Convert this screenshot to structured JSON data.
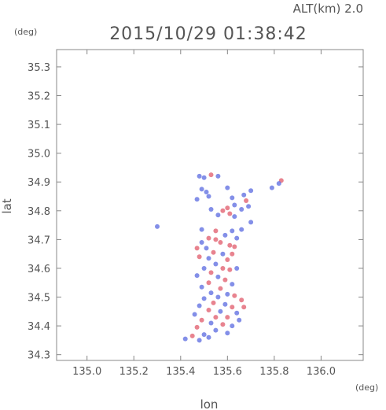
{
  "header": {
    "alt_label": "ALT(km) 2.0",
    "timestamp": "2015/10/29 01:38:42"
  },
  "chart_data": {
    "type": "scatter",
    "title": "2015/10/29 01:38:42",
    "subtitle": "ALT(km) 2.0",
    "xlabel": "lon",
    "ylabel": "lat",
    "x_unit": "(deg)",
    "y_unit": "(deg)",
    "xlim": [
      134.87,
      136.18
    ],
    "ylim": [
      34.28,
      35.36
    ],
    "x_ticks": [
      "135.0",
      "135.2",
      "135.4",
      "135.6",
      "135.8",
      "136.0"
    ],
    "x_tick_values": [
      135.0,
      135.2,
      135.4,
      135.6,
      135.8,
      136.0
    ],
    "y_ticks": [
      "34.3",
      "34.4",
      "34.5",
      "34.6",
      "34.7",
      "34.8",
      "34.9",
      "35.0",
      "35.1",
      "35.2",
      "35.3"
    ],
    "y_tick_values": [
      34.3,
      34.4,
      34.5,
      34.6,
      34.7,
      34.8,
      34.9,
      35.0,
      35.1,
      35.2,
      35.3
    ],
    "colors": {
      "positive": "#e05a6a",
      "negative": "#5a6ae0",
      "axis": "#888888"
    },
    "points": [
      {
        "lon": 135.53,
        "lat": 34.925,
        "s": "pos"
      },
      {
        "lon": 135.5,
        "lat": 34.915,
        "s": "neg"
      },
      {
        "lon": 135.48,
        "lat": 34.92,
        "s": "neg"
      },
      {
        "lon": 135.56,
        "lat": 34.92,
        "s": "neg"
      },
      {
        "lon": 135.83,
        "lat": 34.905,
        "s": "pos"
      },
      {
        "lon": 135.82,
        "lat": 34.895,
        "s": "neg"
      },
      {
        "lon": 135.79,
        "lat": 34.88,
        "s": "neg"
      },
      {
        "lon": 135.6,
        "lat": 34.88,
        "s": "neg"
      },
      {
        "lon": 135.49,
        "lat": 34.875,
        "s": "neg"
      },
      {
        "lon": 135.51,
        "lat": 34.865,
        "s": "neg"
      },
      {
        "lon": 135.7,
        "lat": 34.87,
        "s": "neg"
      },
      {
        "lon": 135.67,
        "lat": 34.855,
        "s": "neg"
      },
      {
        "lon": 135.52,
        "lat": 34.85,
        "s": "neg"
      },
      {
        "lon": 135.62,
        "lat": 34.845,
        "s": "neg"
      },
      {
        "lon": 135.68,
        "lat": 34.835,
        "s": "pos"
      },
      {
        "lon": 135.47,
        "lat": 34.84,
        "s": "neg"
      },
      {
        "lon": 135.63,
        "lat": 34.82,
        "s": "neg"
      },
      {
        "lon": 135.6,
        "lat": 34.81,
        "s": "pos"
      },
      {
        "lon": 135.53,
        "lat": 34.805,
        "s": "neg"
      },
      {
        "lon": 135.66,
        "lat": 34.805,
        "s": "neg"
      },
      {
        "lon": 135.69,
        "lat": 34.815,
        "s": "neg"
      },
      {
        "lon": 135.58,
        "lat": 34.8,
        "s": "pos"
      },
      {
        "lon": 135.61,
        "lat": 34.79,
        "s": "pos"
      },
      {
        "lon": 135.56,
        "lat": 34.785,
        "s": "neg"
      },
      {
        "lon": 135.63,
        "lat": 34.78,
        "s": "neg"
      },
      {
        "lon": 135.7,
        "lat": 34.76,
        "s": "neg"
      },
      {
        "lon": 135.3,
        "lat": 34.745,
        "s": "neg"
      },
      {
        "lon": 135.49,
        "lat": 34.735,
        "s": "neg"
      },
      {
        "lon": 135.55,
        "lat": 34.73,
        "s": "pos"
      },
      {
        "lon": 135.62,
        "lat": 34.73,
        "s": "neg"
      },
      {
        "lon": 135.66,
        "lat": 34.735,
        "s": "neg"
      },
      {
        "lon": 135.59,
        "lat": 34.715,
        "s": "neg"
      },
      {
        "lon": 135.52,
        "lat": 34.705,
        "s": "pos"
      },
      {
        "lon": 135.55,
        "lat": 34.7,
        "s": "pos"
      },
      {
        "lon": 135.64,
        "lat": 34.705,
        "s": "neg"
      },
      {
        "lon": 135.49,
        "lat": 34.69,
        "s": "neg"
      },
      {
        "lon": 135.57,
        "lat": 34.69,
        "s": "pos"
      },
      {
        "lon": 135.61,
        "lat": 34.68,
        "s": "pos"
      },
      {
        "lon": 135.47,
        "lat": 34.67,
        "s": "pos"
      },
      {
        "lon": 135.51,
        "lat": 34.67,
        "s": "neg"
      },
      {
        "lon": 135.63,
        "lat": 34.675,
        "s": "pos"
      },
      {
        "lon": 135.54,
        "lat": 34.655,
        "s": "pos"
      },
      {
        "lon": 135.58,
        "lat": 34.65,
        "s": "neg"
      },
      {
        "lon": 135.62,
        "lat": 34.65,
        "s": "pos"
      },
      {
        "lon": 135.48,
        "lat": 34.64,
        "s": "pos"
      },
      {
        "lon": 135.52,
        "lat": 34.635,
        "s": "neg"
      },
      {
        "lon": 135.6,
        "lat": 34.63,
        "s": "pos"
      },
      {
        "lon": 135.55,
        "lat": 34.615,
        "s": "neg"
      },
      {
        "lon": 135.5,
        "lat": 34.6,
        "s": "neg"
      },
      {
        "lon": 135.58,
        "lat": 34.6,
        "s": "pos"
      },
      {
        "lon": 135.61,
        "lat": 34.595,
        "s": "pos"
      },
      {
        "lon": 135.64,
        "lat": 34.6,
        "s": "neg"
      },
      {
        "lon": 135.53,
        "lat": 34.585,
        "s": "pos"
      },
      {
        "lon": 135.47,
        "lat": 34.575,
        "s": "neg"
      },
      {
        "lon": 135.56,
        "lat": 34.57,
        "s": "neg"
      },
      {
        "lon": 135.59,
        "lat": 34.56,
        "s": "pos"
      },
      {
        "lon": 135.52,
        "lat": 34.55,
        "s": "pos"
      },
      {
        "lon": 135.62,
        "lat": 34.545,
        "s": "neg"
      },
      {
        "lon": 135.49,
        "lat": 34.535,
        "s": "neg"
      },
      {
        "lon": 135.57,
        "lat": 34.53,
        "s": "pos"
      },
      {
        "lon": 135.53,
        "lat": 34.515,
        "s": "neg"
      },
      {
        "lon": 135.6,
        "lat": 34.51,
        "s": "neg"
      },
      {
        "lon": 135.56,
        "lat": 34.5,
        "s": "neg"
      },
      {
        "lon": 135.63,
        "lat": 34.505,
        "s": "pos"
      },
      {
        "lon": 135.5,
        "lat": 34.495,
        "s": "neg"
      },
      {
        "lon": 135.66,
        "lat": 34.49,
        "s": "pos"
      },
      {
        "lon": 135.54,
        "lat": 34.48,
        "s": "pos"
      },
      {
        "lon": 135.59,
        "lat": 34.475,
        "s": "neg"
      },
      {
        "lon": 135.48,
        "lat": 34.47,
        "s": "neg"
      },
      {
        "lon": 135.62,
        "lat": 34.465,
        "s": "pos"
      },
      {
        "lon": 135.67,
        "lat": 34.465,
        "s": "pos"
      },
      {
        "lon": 135.52,
        "lat": 34.455,
        "s": "pos"
      },
      {
        "lon": 135.57,
        "lat": 34.45,
        "s": "neg"
      },
      {
        "lon": 135.64,
        "lat": 34.445,
        "s": "neg"
      },
      {
        "lon": 135.46,
        "lat": 34.44,
        "s": "neg"
      },
      {
        "lon": 135.55,
        "lat": 34.43,
        "s": "pos"
      },
      {
        "lon": 135.6,
        "lat": 34.43,
        "s": "pos"
      },
      {
        "lon": 135.49,
        "lat": 34.42,
        "s": "pos"
      },
      {
        "lon": 135.65,
        "lat": 34.42,
        "s": "neg"
      },
      {
        "lon": 135.53,
        "lat": 34.41,
        "s": "neg"
      },
      {
        "lon": 135.58,
        "lat": 34.405,
        "s": "pos"
      },
      {
        "lon": 135.62,
        "lat": 34.4,
        "s": "neg"
      },
      {
        "lon": 135.47,
        "lat": 34.395,
        "s": "pos"
      },
      {
        "lon": 135.55,
        "lat": 34.385,
        "s": "neg"
      },
      {
        "lon": 135.6,
        "lat": 34.375,
        "s": "neg"
      },
      {
        "lon": 135.5,
        "lat": 34.37,
        "s": "neg"
      },
      {
        "lon": 135.45,
        "lat": 34.365,
        "s": "pos"
      },
      {
        "lon": 135.52,
        "lat": 34.36,
        "s": "neg"
      },
      {
        "lon": 135.42,
        "lat": 34.355,
        "s": "neg"
      },
      {
        "lon": 135.48,
        "lat": 34.35,
        "s": "neg"
      }
    ]
  }
}
